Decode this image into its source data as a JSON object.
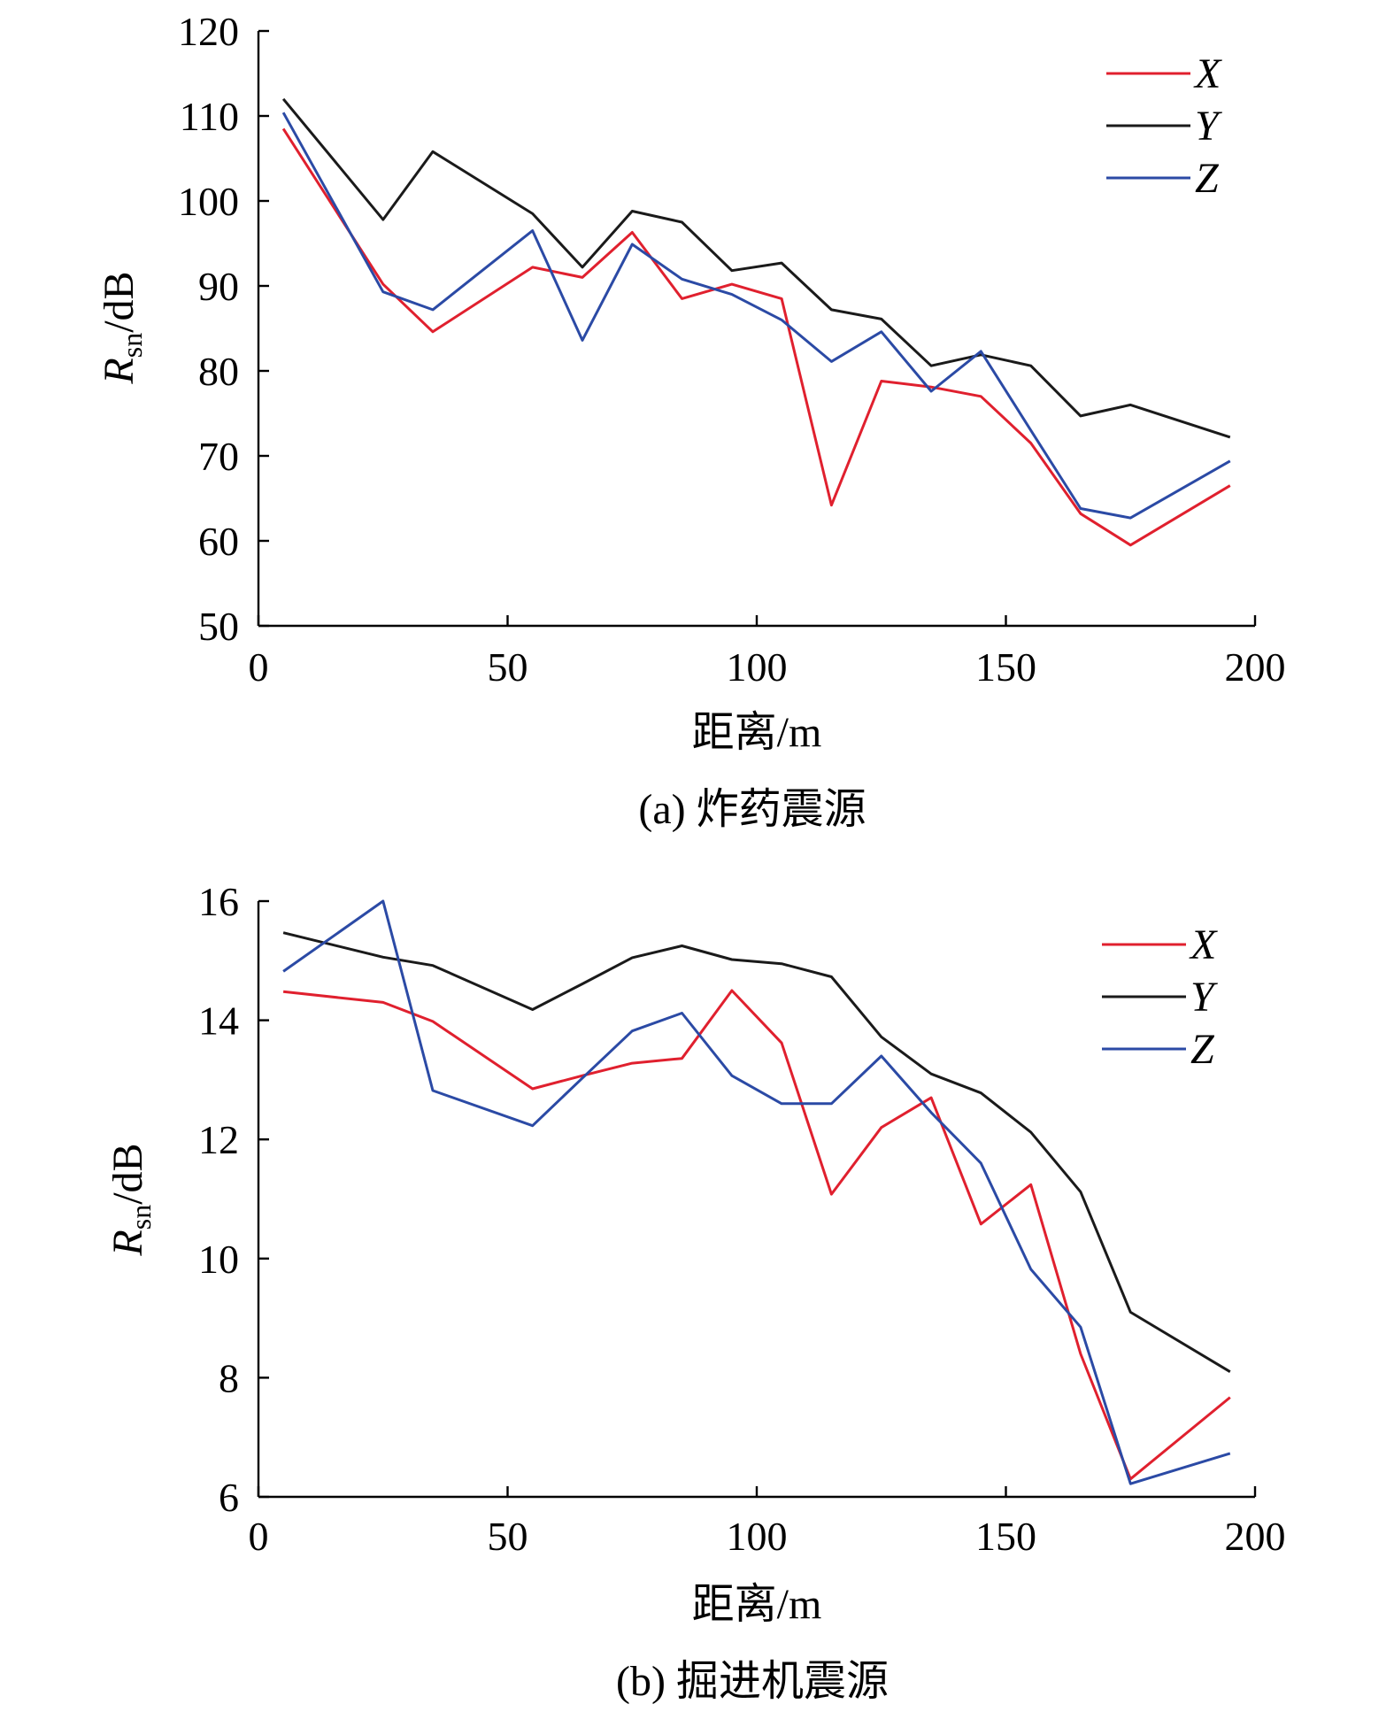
{
  "chart_data": [
    {
      "type": "line",
      "caption": "(a) 炸药震源",
      "xlabel": "距离/m",
      "ylabel_main": "R",
      "ylabel_sub": "sn",
      "ylabel_unit": "/dB",
      "xlim": [
        0,
        200
      ],
      "ylim": [
        50,
        120
      ],
      "xticks": [
        0,
        50,
        100,
        150,
        200
      ],
      "yticks": [
        50,
        60,
        70,
        80,
        90,
        100,
        110,
        120
      ],
      "legend_position": "top-right",
      "x": [
        5,
        25,
        35,
        55,
        65,
        75,
        85,
        95,
        105,
        115,
        125,
        135,
        145,
        155,
        165,
        175,
        195
      ],
      "series": [
        {
          "name": "X",
          "color": "#e0202e",
          "values": [
            108.5,
            90.2,
            84.6,
            92.2,
            91.0,
            96.3,
            88.5,
            90.2,
            88.5,
            64.2,
            78.8,
            78.1,
            77.0,
            71.5,
            63.2,
            59.5,
            66.5
          ]
        },
        {
          "name": "Y",
          "color": "#1a1a1a",
          "values": [
            112.0,
            97.8,
            105.8,
            98.5,
            92.2,
            98.8,
            97.5,
            91.8,
            92.7,
            87.2,
            86.1,
            80.6,
            81.9,
            80.6,
            74.7,
            76.0,
            72.2
          ]
        },
        {
          "name": "Z",
          "color": "#2b4aa5",
          "values": [
            110.4,
            89.3,
            87.2,
            96.5,
            83.6,
            94.9,
            90.8,
            89.0,
            86.0,
            81.1,
            84.6,
            77.6,
            82.3,
            73.0,
            63.8,
            62.7,
            69.4
          ]
        }
      ]
    },
    {
      "type": "line",
      "caption": "(b) 掘进机震源",
      "xlabel": "距离/m",
      "ylabel_main": "R",
      "ylabel_sub": "sn",
      "ylabel_unit": "/dB",
      "xlim": [
        0,
        200
      ],
      "ylim": [
        6,
        16
      ],
      "xticks": [
        0,
        50,
        100,
        150,
        200
      ],
      "yticks": [
        6,
        8,
        10,
        12,
        14,
        16
      ],
      "legend_position": "top-right",
      "x": [
        5,
        25,
        35,
        55,
        65,
        75,
        85,
        95,
        105,
        115,
        125,
        135,
        145,
        155,
        165,
        175,
        195
      ],
      "series": [
        {
          "name": "X",
          "color": "#e0202e",
          "values": [
            14.48,
            14.3,
            13.98,
            12.85,
            13.07,
            13.28,
            13.36,
            14.5,
            13.62,
            11.08,
            12.2,
            12.7,
            10.58,
            11.24,
            8.4,
            6.3,
            7.67
          ]
        },
        {
          "name": "Y",
          "color": "#1a1a1a",
          "values": [
            15.47,
            15.06,
            14.92,
            14.18,
            14.61,
            15.05,
            15.25,
            15.02,
            14.95,
            14.73,
            13.72,
            13.1,
            12.78,
            12.12,
            11.12,
            9.1,
            8.1
          ]
        },
        {
          "name": "Z",
          "color": "#2b4aa5",
          "values": [
            14.82,
            16.0,
            12.82,
            12.23,
            13.03,
            13.82,
            14.12,
            13.07,
            12.6,
            12.6,
            13.4,
            12.45,
            11.6,
            9.82,
            8.85,
            6.22,
            6.73
          ]
        }
      ]
    }
  ]
}
